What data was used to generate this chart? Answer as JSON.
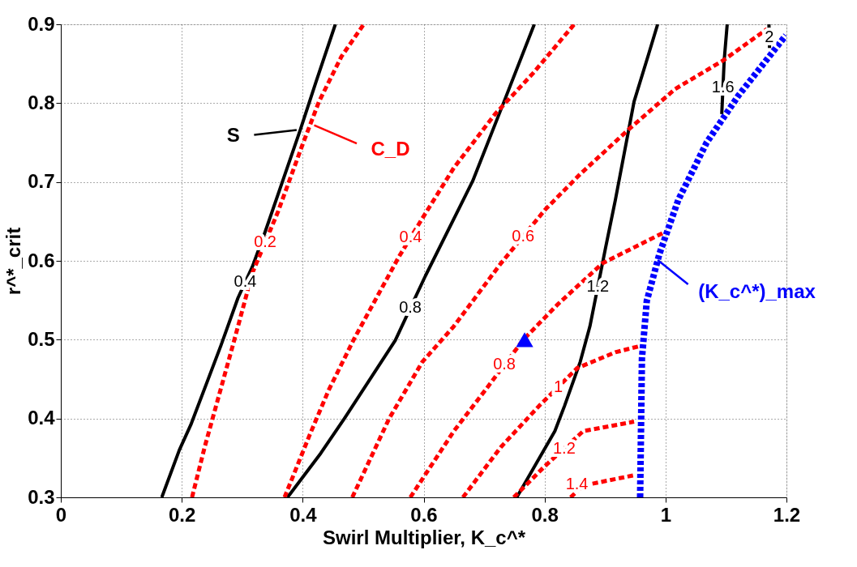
{
  "chart_data": {
    "type": "line",
    "xlabel": "Swirl Multiplier, K_c^*",
    "ylabel": "r^*_crit",
    "xlim": [
      0,
      1.2
    ],
    "xticks": [
      0,
      0.2,
      0.4,
      0.6,
      0.8,
      1,
      1.2
    ],
    "ylim": [
      0.3,
      0.9
    ],
    "yticks": [
      0.3,
      0.4,
      0.5,
      0.6,
      0.7,
      0.8,
      0.9
    ],
    "grid": true,
    "series": [
      {
        "name": "0.4",
        "color": "#000000",
        "line_style": "solid",
        "x": [
          0.167,
          0.196,
          0.215,
          0.265,
          0.293,
          0.317,
          0.338,
          0.396,
          0.422,
          0.454
        ],
        "values": [
          0.3,
          0.36,
          0.392,
          0.493,
          0.553,
          0.593,
          0.637,
          0.766,
          0.827,
          0.9
        ]
      },
      {
        "name": "0.8",
        "color": "#000000",
        "line_style": "solid",
        "x": [
          0.375,
          0.43,
          0.469,
          0.553,
          0.603,
          0.681,
          0.733,
          0.783
        ],
        "values": [
          0.3,
          0.356,
          0.4,
          0.499,
          0.581,
          0.701,
          0.802,
          0.9
        ]
      },
      {
        "name": "1.2",
        "color": "#000000",
        "line_style": "solid",
        "x": [
          0.754,
          0.817,
          0.833,
          0.859,
          0.875,
          0.901,
          0.917,
          0.948,
          0.972,
          0.987
        ],
        "values": [
          0.3,
          0.384,
          0.416,
          0.472,
          0.517,
          0.617,
          0.677,
          0.802,
          0.862,
          0.9
        ]
      },
      {
        "name": "1.6",
        "color": "#000000",
        "line_style": "solid",
        "x": [
          1.093,
          1.097,
          1.102
        ],
        "values": [
          0.786,
          0.854,
          0.9
        ]
      },
      {
        "name": "2",
        "color": "#000000",
        "line_style": "solid",
        "x": [
          1.172,
          1.171
        ],
        "values": [
          0.87,
          0.9
        ]
      },
      {
        "name": "0.2",
        "color": "#ff0000",
        "line_style": "dashed",
        "x": [
          0.217,
          0.238,
          0.286,
          0.317,
          0.359,
          0.401,
          0.427,
          0.464,
          0.501
        ],
        "values": [
          0.3,
          0.364,
          0.497,
          0.585,
          0.662,
          0.75,
          0.802,
          0.859,
          0.9
        ]
      },
      {
        "name": "0.4",
        "color": "#ff0000",
        "line_style": "dashed",
        "x": [
          0.37,
          0.412,
          0.443,
          0.485,
          0.559,
          0.598,
          0.65,
          0.718,
          0.781,
          0.849
        ],
        "values": [
          0.3,
          0.38,
          0.436,
          0.501,
          0.605,
          0.654,
          0.718,
          0.786,
          0.838,
          0.9
        ]
      },
      {
        "name": "0.6",
        "color": "#ff0000",
        "line_style": "dashed",
        "x": [
          0.482,
          0.543,
          0.598,
          0.65,
          0.728,
          0.801,
          0.859,
          0.938,
          1.016,
          1.095,
          1.168
        ],
        "values": [
          0.3,
          0.4,
          0.472,
          0.517,
          0.597,
          0.665,
          0.71,
          0.766,
          0.818,
          0.854,
          0.894
        ]
      },
      {
        "name": "0.8",
        "color": "#ff0000",
        "line_style": "dashed",
        "x": [
          0.578,
          0.65,
          0.702,
          0.765,
          0.822,
          0.896,
          1.0
        ],
        "values": [
          0.3,
          0.384,
          0.436,
          0.5,
          0.545,
          0.597,
          0.637
        ]
      },
      {
        "name": "1",
        "color": "#ff0000",
        "line_style": "dashed",
        "x": [
          0.665,
          0.728,
          0.791,
          0.854,
          0.917,
          0.958
        ],
        "values": [
          0.3,
          0.364,
          0.416,
          0.464,
          0.484,
          0.492
        ]
      },
      {
        "name": "1.2",
        "color": "#ff0000",
        "line_style": "dashed",
        "x": [
          0.749,
          0.801,
          0.864,
          0.948
        ],
        "values": [
          0.3,
          0.34,
          0.384,
          0.396
        ]
      },
      {
        "name": "1.4",
        "color": "#ff0000",
        "line_style": "dashed",
        "x": [
          0.843,
          0.864,
          0.948
        ],
        "values": [
          0.3,
          0.315,
          0.328
        ]
      },
      {
        "color": "#0000ff",
        "line_style": "dotted",
        "x": [
          0.958,
          0.961,
          0.969,
          0.99,
          1.021,
          1.068,
          1.121,
          1.199
        ],
        "values": [
          0.3,
          0.476,
          0.549,
          0.609,
          0.677,
          0.75,
          0.81,
          0.886
        ]
      },
      {
        "type": "scatter",
        "marker": "triangle",
        "color": "#0000ff",
        "x": [
          0.767
        ],
        "values": [
          0.5
        ]
      }
    ],
    "annotations": [
      {
        "text": "S",
        "x": 0.39,
        "y": 0.766
      },
      {
        "text": "C_D",
        "x": 0.419,
        "y": 0.772
      },
      {
        "text": "(K_c^*)_max",
        "x": 0.987,
        "y": 0.601
      }
    ]
  }
}
